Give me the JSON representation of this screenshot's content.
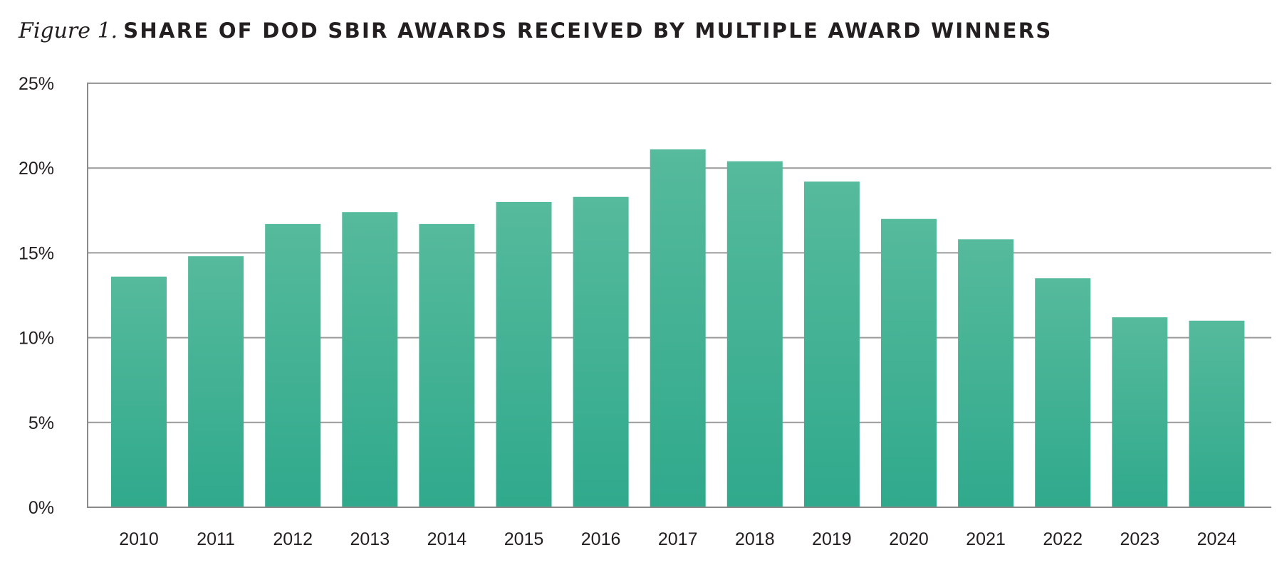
{
  "figure": {
    "label": "Figure 1.",
    "title": "SHARE OF DOD SBIR AWARDS RECEIVED BY MULTIPLE AWARD WINNERS"
  },
  "colors": {
    "bar_top": "#56ba9c",
    "bar_bottom": "#30a98c",
    "gridline": "#9a9a9a",
    "text": "#231f20"
  },
  "chart_data": {
    "type": "bar",
    "title": "SHARE OF DOD SBIR AWARDS RECEIVED BY MULTIPLE AWARD WINNERS",
    "xlabel": "",
    "ylabel": "",
    "categories": [
      "2010",
      "2011",
      "2012",
      "2013",
      "2014",
      "2015",
      "2016",
      "2017",
      "2018",
      "2019",
      "2020",
      "2021",
      "2022",
      "2023",
      "2024"
    ],
    "values": [
      13.6,
      14.8,
      16.7,
      17.4,
      16.7,
      18.0,
      18.3,
      21.1,
      20.4,
      19.2,
      17.0,
      15.8,
      13.5,
      11.2,
      11.0
    ],
    "unit": "%",
    "ylim": [
      0,
      25
    ],
    "yticks": [
      0,
      5,
      10,
      15,
      20,
      25
    ],
    "ytick_labels": [
      "0%",
      "5%",
      "10%",
      "15%",
      "20%",
      "25%"
    ],
    "grid": true,
    "legend": "none"
  }
}
